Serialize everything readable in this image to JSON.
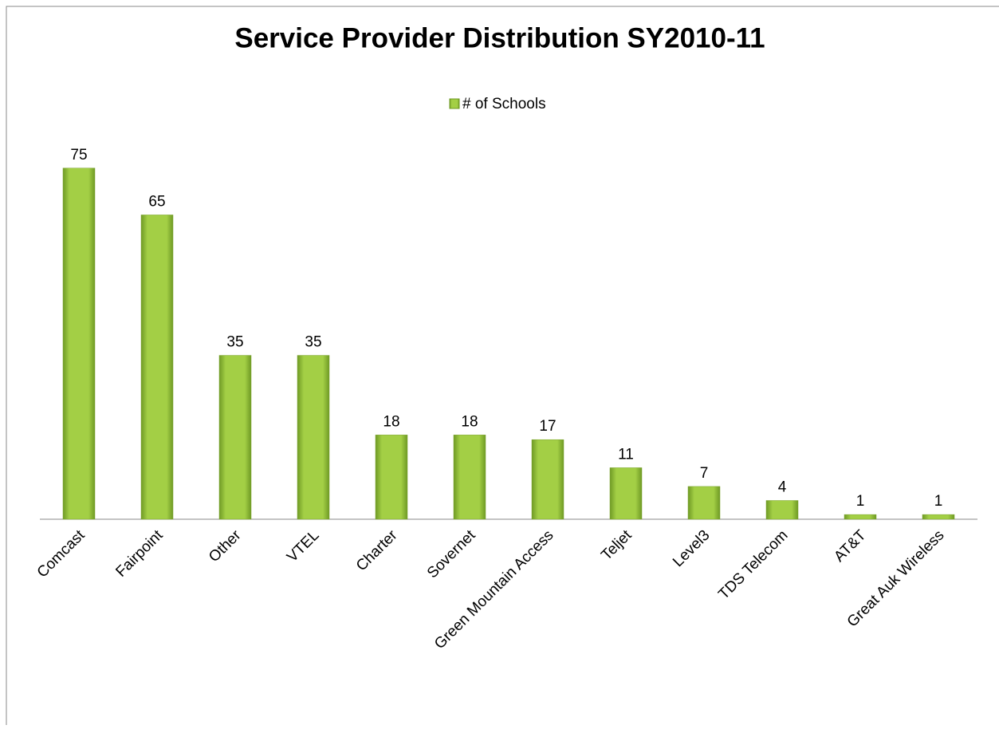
{
  "chart_data": {
    "type": "bar",
    "title": "Service Provider Distribution SY2010-11",
    "categories": [
      "Comcast",
      "Fairpoint",
      "Other",
      "VTEL",
      "Charter",
      "Sovernet",
      "Green Mountain Access",
      "Teljet",
      "Level3",
      "TDS Telecom",
      "AT&T",
      "Great Auk Wireless"
    ],
    "series": [
      {
        "name": "# of Schools",
        "color": "#9bc83c",
        "values": [
          75,
          65,
          35,
          35,
          18,
          18,
          17,
          11,
          7,
          4,
          1,
          1
        ]
      }
    ]
  }
}
